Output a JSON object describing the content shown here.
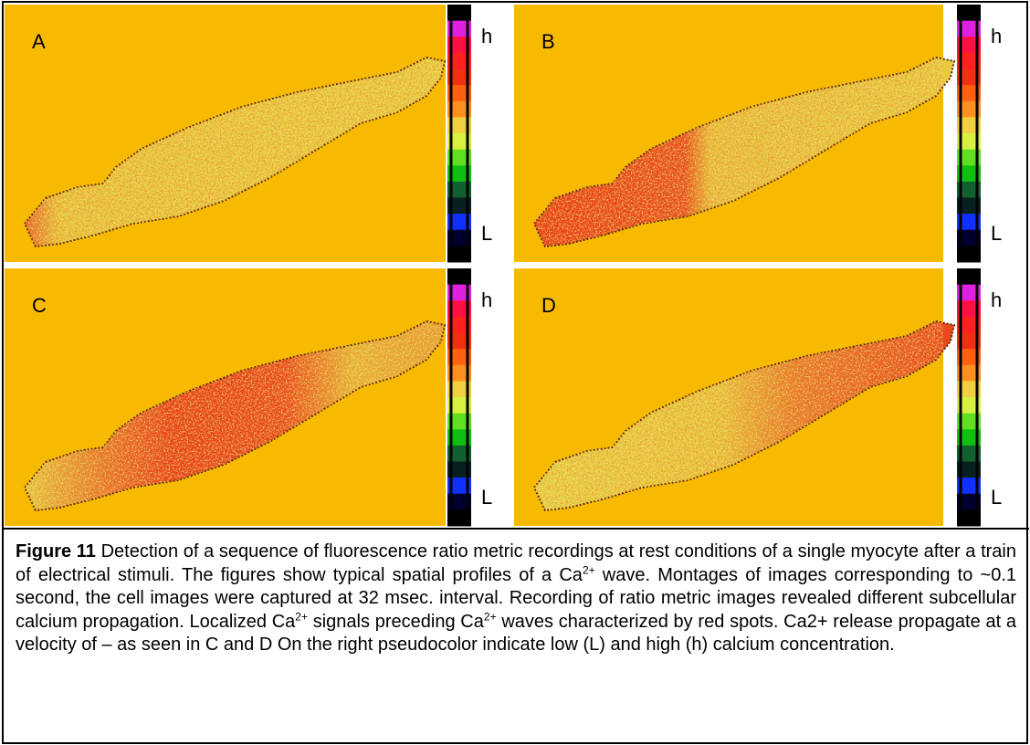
{
  "panels": [
    {
      "label": "A",
      "high": "h",
      "low": "L"
    },
    {
      "label": "B",
      "high": "h",
      "low": "L"
    },
    {
      "label": "C",
      "high": "h",
      "low": "L"
    },
    {
      "label": "D",
      "high": "h",
      "low": "L"
    }
  ],
  "caption": {
    "title": "Figure 11",
    "parts": [
      " Detection of a sequence of fluorescence ratio metric recordings at rest conditions of a single myocyte after a train of electrical stimuli. The figures show typical spatial profiles of a Ca",
      "2+",
      " wave. Montages of images corresponding to ~0.1 second, the cell images were captured at 32 msec. interval. Recording of ratio metric images revealed different subcellular calcium propagation. Localized Ca",
      "2+",
      " signals preceding Ca",
      "2+",
      " waves characterized by red spots. Ca2+ release propagate at a velocity of – as seen in C and D On the right pseudocolor indicate low (L) and high (h) calcium concentration."
    ]
  }
}
